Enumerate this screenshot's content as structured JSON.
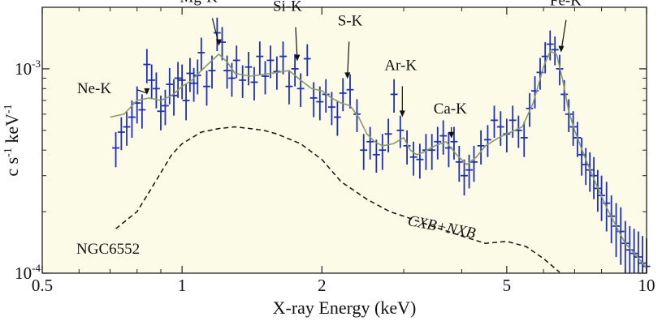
{
  "chart_data": {
    "type": "scatter",
    "title": "",
    "xlabel": "X-ray Energy (keV)",
    "ylabel_parts": [
      "c s",
      "-1",
      " keV",
      "-1"
    ],
    "x_scale": "log",
    "y_scale": "log",
    "xlim": [
      0.5,
      10
    ],
    "ylim": [
      0.0001,
      0.002
    ],
    "x_ticks": [
      {
        "value": 0.5,
        "label": "0.5"
      },
      {
        "value": 1,
        "label": "1"
      },
      {
        "value": 2,
        "label": "2"
      },
      {
        "value": 5,
        "label": "5"
      },
      {
        "value": 10,
        "label": "10"
      }
    ],
    "y_ticks": [
      {
        "value": 0.001,
        "base": "10",
        "exp": "-3"
      },
      {
        "value": 0.0001,
        "base": "10",
        "exp": "-4"
      }
    ],
    "plot_background": "#fcfbe8",
    "grid": false,
    "legend": "none",
    "panel_label": "NGC6552",
    "series": [
      {
        "kind": "data",
        "color": "#1f2fb5",
        "points": [
          [
            0.72,
            0.00041,
            8e-05
          ],
          [
            0.74,
            0.00049,
            9e-05
          ],
          [
            0.76,
            0.00052,
            0.0001
          ],
          [
            0.78,
            0.00058,
            0.00012
          ],
          [
            0.8,
            0.00068,
            0.00014
          ],
          [
            0.82,
            0.00063,
            0.00012
          ],
          [
            0.84,
            0.00105,
            0.0002
          ],
          [
            0.86,
            0.00088,
            0.00017
          ],
          [
            0.88,
            0.0008,
            0.00016
          ],
          [
            0.9,
            0.00062,
            0.00012
          ],
          [
            0.92,
            0.00066,
            0.00013
          ],
          [
            0.94,
            0.00084,
            0.00017
          ],
          [
            0.96,
            0.00074,
            0.00015
          ],
          [
            0.98,
            0.0009,
            0.00018
          ],
          [
            1.0,
            0.00088,
            0.00017
          ],
          [
            1.02,
            0.0007,
            0.00014
          ],
          [
            1.04,
            0.00095,
            0.00018
          ],
          [
            1.06,
            0.00085,
            0.00016
          ],
          [
            1.08,
            0.00093,
            0.00018
          ],
          [
            1.1,
            0.0012,
            0.00022
          ],
          [
            1.13,
            0.00082,
            0.00016
          ],
          [
            1.16,
            0.00098,
            0.00018
          ],
          [
            1.19,
            0.0015,
            0.00028
          ],
          [
            1.22,
            0.00135,
            0.00025
          ],
          [
            1.25,
            0.00098,
            0.00018
          ],
          [
            1.28,
            0.0009,
            0.00017
          ],
          [
            1.31,
            0.0011,
            0.0002
          ],
          [
            1.35,
            0.00088,
            0.00016
          ],
          [
            1.39,
            0.00102,
            0.00019
          ],
          [
            1.43,
            0.00086,
            0.00016
          ],
          [
            1.47,
            0.00115,
            0.00021
          ],
          [
            1.51,
            0.00092,
            0.00017
          ],
          [
            1.55,
            0.0011,
            0.0002
          ],
          [
            1.6,
            0.00097,
            0.00018
          ],
          [
            1.65,
            0.00115,
            0.00021
          ],
          [
            1.7,
            0.00082,
            0.00015
          ],
          [
            1.75,
            0.001,
            0.00018
          ],
          [
            1.8,
            0.0008,
            0.00015
          ],
          [
            1.86,
            0.00112,
            0.0002
          ],
          [
            1.92,
            0.00072,
            0.00014
          ],
          [
            1.98,
            0.00069,
            0.00013
          ],
          [
            2.04,
            0.00075,
            0.00014
          ],
          [
            2.1,
            0.00065,
            0.00012
          ],
          [
            2.16,
            0.00058,
            0.00011
          ],
          [
            2.22,
            0.00076,
            0.00014
          ],
          [
            2.3,
            0.00079,
            0.00015
          ],
          [
            2.38,
            0.0006,
            0.00011
          ],
          [
            2.46,
            0.0004,
            8e-05
          ],
          [
            2.54,
            0.00044,
            8e-05
          ],
          [
            2.62,
            0.00038,
            7e-05
          ],
          [
            2.7,
            0.0004,
            8e-05
          ],
          [
            2.78,
            0.00048,
            9e-05
          ],
          [
            2.86,
            0.00075,
            0.00014
          ],
          [
            2.95,
            0.0005,
            9e-05
          ],
          [
            3.05,
            0.00042,
            8e-05
          ],
          [
            3.15,
            0.00037,
            7e-05
          ],
          [
            3.25,
            0.00036,
            7e-05
          ],
          [
            3.35,
            0.0004,
            8e-05
          ],
          [
            3.45,
            0.0004,
            8e-05
          ],
          [
            3.55,
            0.00044,
            8e-05
          ],
          [
            3.65,
            0.00047,
            9e-05
          ],
          [
            3.75,
            0.00041,
            8e-05
          ],
          [
            3.85,
            0.00044,
            8e-05
          ],
          [
            3.95,
            0.00035,
            7e-05
          ],
          [
            4.05,
            0.0003,
            6e-05
          ],
          [
            4.15,
            0.00032,
            6e-05
          ],
          [
            4.25,
            0.00035,
            7e-05
          ],
          [
            4.4,
            0.00042,
            8e-05
          ],
          [
            4.55,
            0.00045,
            8e-05
          ],
          [
            4.7,
            0.00056,
            0.0001
          ],
          [
            4.85,
            0.00052,
            0.0001
          ],
          [
            5.0,
            0.00048,
            9e-05
          ],
          [
            5.15,
            0.00056,
            0.0001
          ],
          [
            5.3,
            0.0005,
            9e-05
          ],
          [
            5.45,
            0.00046,
            9e-05
          ],
          [
            5.6,
            0.00064,
            0.00012
          ],
          [
            5.75,
            0.00078,
            0.00014
          ],
          [
            5.9,
            0.00096,
            0.00017
          ],
          [
            6.05,
            0.00115,
            0.0002
          ],
          [
            6.2,
            0.00132,
            0.00022
          ],
          [
            6.35,
            0.00124,
            0.0002
          ],
          [
            6.5,
            0.001,
            0.00017
          ],
          [
            6.65,
            0.00075,
            0.00013
          ],
          [
            6.8,
            0.0006,
            0.00011
          ],
          [
            6.95,
            0.00052,
            0.0001
          ],
          [
            7.1,
            0.00046,
            9e-05
          ],
          [
            7.25,
            0.00038,
            8e-05
          ],
          [
            7.4,
            0.00034,
            7e-05
          ],
          [
            7.55,
            0.00032,
            7e-05
          ],
          [
            7.7,
            0.0003,
            7e-05
          ],
          [
            7.85,
            0.00026,
            6e-05
          ],
          [
            8.0,
            0.00024,
            6e-05
          ],
          [
            8.2,
            0.00022,
            6e-05
          ],
          [
            8.4,
            0.00019,
            5e-05
          ],
          [
            8.6,
            0.00017,
            5e-05
          ],
          [
            8.8,
            0.00016,
            5e-05
          ],
          [
            9.0,
            0.00014,
            4e-05
          ],
          [
            9.2,
            0.00013,
            4e-05
          ],
          [
            9.4,
            0.000125,
            4e-05
          ],
          [
            9.6,
            0.00012,
            4e-05
          ],
          [
            9.8,
            0.000112,
            4e-05
          ],
          [
            10.0,
            0.000108,
            4e-05
          ]
        ]
      },
      {
        "kind": "model",
        "color": "#8a9a6a",
        "points": [
          [
            0.7,
            0.00058
          ],
          [
            0.75,
            0.0006
          ],
          [
            0.8,
            0.0007
          ],
          [
            0.85,
            0.00072
          ],
          [
            0.9,
            0.0007
          ],
          [
            0.95,
            0.00074
          ],
          [
            1.0,
            0.00082
          ],
          [
            1.05,
            0.00088
          ],
          [
            1.1,
            0.00098
          ],
          [
            1.15,
            0.00108
          ],
          [
            1.2,
            0.00118
          ],
          [
            1.25,
            0.00108
          ],
          [
            1.3,
            0.00095
          ],
          [
            1.4,
            0.00092
          ],
          [
            1.5,
            0.00094
          ],
          [
            1.6,
            0.00096
          ],
          [
            1.7,
            0.00098
          ],
          [
            1.8,
            0.00088
          ],
          [
            1.9,
            0.0008
          ],
          [
            2.0,
            0.00078
          ],
          [
            2.1,
            0.00072
          ],
          [
            2.2,
            0.00068
          ],
          [
            2.3,
            0.00066
          ],
          [
            2.4,
            0.00058
          ],
          [
            2.5,
            0.00048
          ],
          [
            2.6,
            0.00044
          ],
          [
            2.7,
            0.00042
          ],
          [
            2.85,
            0.00043
          ],
          [
            3.0,
            0.00046
          ],
          [
            3.1,
            0.0004
          ],
          [
            3.2,
            0.00038
          ],
          [
            3.3,
            0.00039
          ],
          [
            3.5,
            0.00042
          ],
          [
            3.7,
            0.00044
          ],
          [
            3.9,
            0.00038
          ],
          [
            4.1,
            0.00034
          ],
          [
            4.3,
            0.00037
          ],
          [
            4.5,
            0.00042
          ],
          [
            4.8,
            0.00046
          ],
          [
            5.1,
            0.00049
          ],
          [
            5.4,
            0.00052
          ],
          [
            5.7,
            0.00068
          ],
          [
            6.0,
            0.00102
          ],
          [
            6.2,
            0.00122
          ],
          [
            6.4,
            0.00118
          ],
          [
            6.6,
            0.00088
          ],
          [
            6.8,
            0.00062
          ],
          [
            7.0,
            0.0005
          ],
          [
            7.4,
            0.00036
          ],
          [
            7.8,
            0.00027
          ],
          [
            8.2,
            0.00021
          ],
          [
            8.6,
            0.00017
          ],
          [
            9.0,
            0.00014
          ],
          [
            9.5,
            0.000122
          ],
          [
            10.0,
            0.000106
          ]
        ]
      },
      {
        "kind": "background",
        "name": "CXB+NXB",
        "color": "#111111",
        "points": [
          [
            0.72,
            0.000165
          ],
          [
            0.8,
            0.0002
          ],
          [
            0.85,
            0.00025
          ],
          [
            0.9,
            0.00031
          ],
          [
            0.95,
            0.00038
          ],
          [
            1.0,
            0.00043
          ],
          [
            1.1,
            0.00049
          ],
          [
            1.2,
            0.00051
          ],
          [
            1.3,
            0.00052
          ],
          [
            1.4,
            0.00051
          ],
          [
            1.5,
            0.0005
          ],
          [
            1.6,
            0.00048
          ],
          [
            1.8,
            0.00043
          ],
          [
            2.0,
            0.00036
          ],
          [
            2.2,
            0.00028
          ],
          [
            2.5,
            0.00023
          ],
          [
            2.8,
            0.0002
          ],
          [
            3.0,
            0.00019
          ],
          [
            3.5,
            0.000168
          ],
          [
            4.0,
            0.000152
          ],
          [
            4.5,
            0.00014
          ],
          [
            5.0,
            0.000143
          ],
          [
            5.5,
            0.000135
          ],
          [
            6.0,
            0.000118
          ],
          [
            6.5,
            0.000101
          ]
        ]
      }
    ],
    "annotations": [
      {
        "text": "Ne-K",
        "x": 0.84,
        "y": 0.00072
      },
      {
        "text": "Mg-K",
        "x": 1.2,
        "y": 0.00125
      },
      {
        "text": "Si-K",
        "x": 1.77,
        "y": 0.00105
      },
      {
        "text": "S-K",
        "x": 2.27,
        "y": 0.00086
      },
      {
        "text": "Ar-K",
        "x": 2.98,
        "y": 0.00056
      },
      {
        "text": "Ca-K",
        "x": 3.8,
        "y": 0.00044
      },
      {
        "text": "Fe-K",
        "x": 6.55,
        "y": 0.00116
      }
    ]
  }
}
